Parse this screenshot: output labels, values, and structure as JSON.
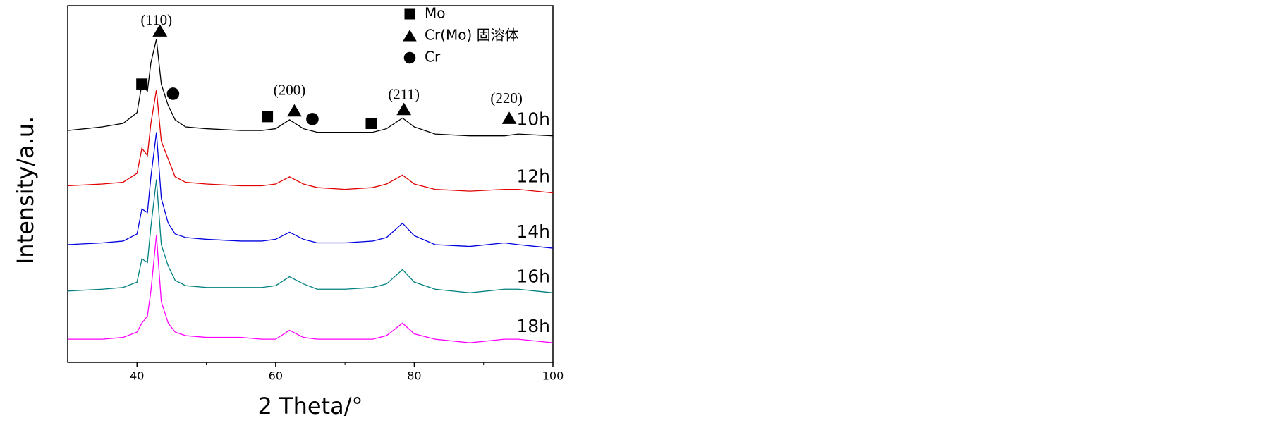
{
  "chart_data": {
    "type": "line",
    "x_label": "2 Theta/°",
    "y_label": "Intensity/a.u.",
    "xlim": [
      30,
      100
    ],
    "ylim": [
      0,
      100
    ],
    "xticks": [
      40,
      60,
      80,
      100
    ],
    "minor_xticks": [
      50,
      70,
      90
    ],
    "x": [
      30,
      35,
      38,
      40,
      40.7,
      41.5,
      42,
      42.8,
      43.5,
      44.5,
      45.5,
      47,
      50,
      55,
      58,
      60,
      62,
      64,
      66,
      70,
      74,
      76,
      78.3,
      80,
      83,
      88,
      93,
      95,
      100
    ],
    "series": [
      {
        "name": "10h",
        "color": "#000000",
        "values": [
          65,
          66,
          67,
          70,
          78,
          76,
          84,
          90.6,
          78,
          72,
          68,
          66,
          65.5,
          65,
          65,
          65.5,
          68,
          65.5,
          64.5,
          64.5,
          64.5,
          65.5,
          68.5,
          66,
          64,
          63.5,
          63.5,
          64,
          63.5
        ]
      },
      {
        "name": "12h",
        "color": "#e00000",
        "values": [
          49.5,
          50,
          50.5,
          53,
          60,
          58,
          67,
          76.4,
          62,
          57,
          52,
          50.5,
          50,
          49.5,
          49.5,
          50,
          52,
          50,
          49,
          48.5,
          49,
          50,
          52.5,
          50,
          48.5,
          48,
          48.5,
          48.5,
          47.5
        ]
      },
      {
        "name": "14h",
        "color": "#0000e0",
        "values": [
          33,
          33.5,
          34,
          36,
          43,
          42,
          52,
          64.5,
          46,
          39,
          36,
          35,
          34.5,
          34,
          34,
          34.5,
          36.5,
          34.5,
          33.5,
          33.5,
          34,
          35,
          39,
          35.5,
          33,
          32.5,
          33.5,
          33,
          32
        ]
      },
      {
        "name": "16h",
        "color": "#008080",
        "values": [
          20,
          20.5,
          21,
          22.5,
          29,
          28,
          38,
          51.3,
          33,
          27,
          23,
          21.5,
          21,
          21,
          21,
          21.5,
          24,
          22,
          20.5,
          20.5,
          21,
          22,
          26,
          22.5,
          20.5,
          19.5,
          20.5,
          20.5,
          19.5
        ]
      },
      {
        "name": "18h",
        "color": "#ff00ff",
        "values": [
          6.5,
          6.5,
          7,
          8.5,
          11,
          13,
          20,
          35.7,
          17,
          11,
          8.5,
          7.5,
          7,
          7,
          6.5,
          6.5,
          9,
          7,
          6.5,
          6.5,
          6.5,
          7.5,
          11,
          8,
          6.5,
          5.5,
          6.5,
          6.5,
          5.5
        ]
      }
    ],
    "legend_symbols": [
      {
        "symbol": "square",
        "label": "Mo"
      },
      {
        "symbol": "triangle",
        "label": "Cr(Mo)  固溶体"
      },
      {
        "symbol": "circle",
        "label": "Cr"
      }
    ],
    "peak_markers": [
      {
        "symbol": "square",
        "x": 40.7,
        "y": 78
      },
      {
        "symbol": "triangle",
        "x": 43.3,
        "y": 92.9
      },
      {
        "symbol": "circle",
        "x": 45.2,
        "y": 75.3
      },
      {
        "symbol": "square",
        "x": 58.8,
        "y": 68.9
      },
      {
        "symbol": "triangle",
        "x": 62.7,
        "y": 70.5
      },
      {
        "symbol": "circle",
        "x": 65.3,
        "y": 68.2
      },
      {
        "symbol": "square",
        "x": 73.8,
        "y": 67
      },
      {
        "symbol": "triangle",
        "x": 78.5,
        "y": 70.9
      },
      {
        "symbol": "triangle",
        "x": 93.7,
        "y": 68.4
      }
    ],
    "annotations": [
      {
        "text": "(110)",
        "x": 42.8,
        "y": 95.6
      },
      {
        "text": "(200)",
        "x": 62,
        "y": 76
      },
      {
        "text": "(211)",
        "x": 78.5,
        "y": 74.8
      },
      {
        "text": "(220)",
        "x": 93.3,
        "y": 73.7
      }
    ]
  }
}
